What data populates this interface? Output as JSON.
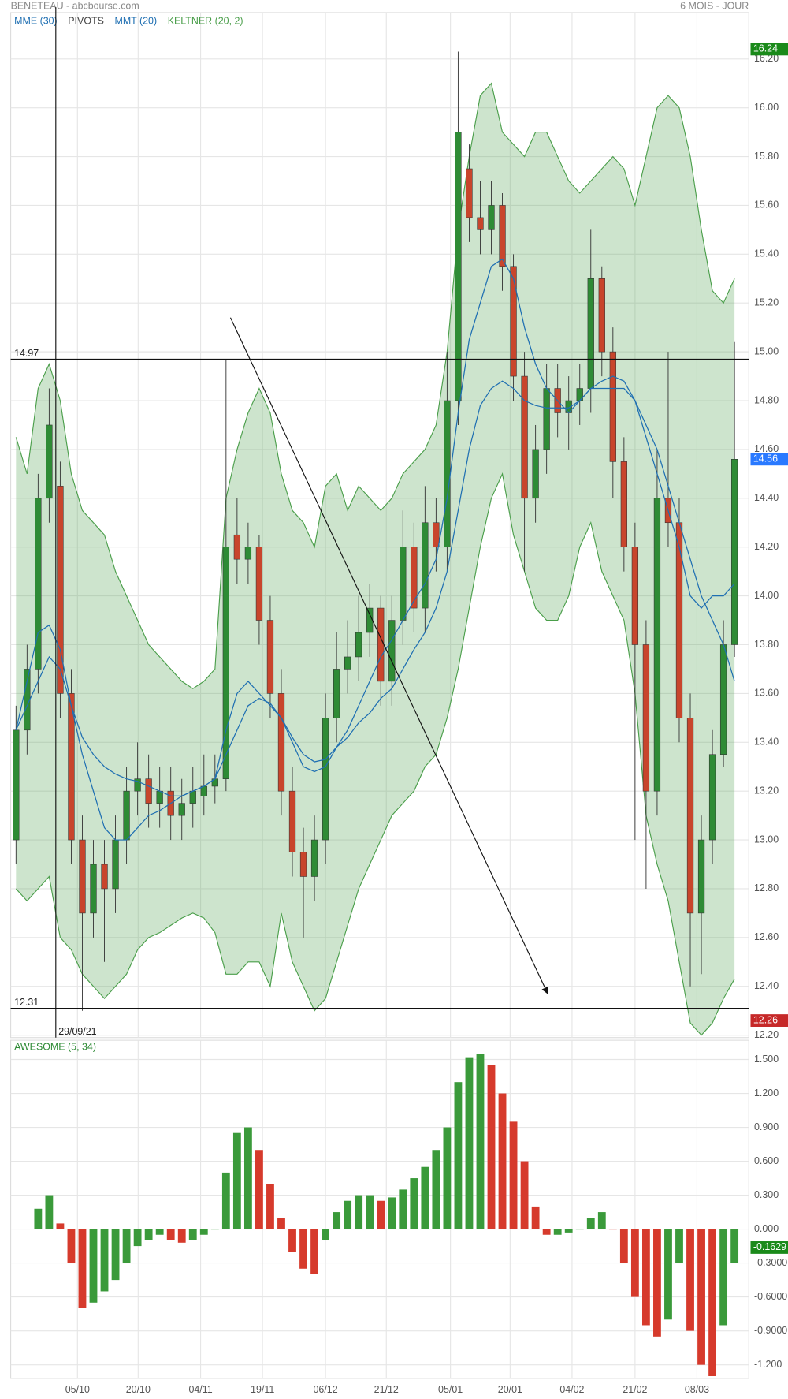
{
  "header": {
    "title": "BENETEAU - abcbourse.com",
    "period": "6 MOIS - JOUR"
  },
  "chart_data": [
    {
      "type": "candlestick",
      "up_color": "#2e8b35",
      "down_color": "#c8452c",
      "grid": true,
      "xlim": [
        -0.48,
        66.29
      ],
      "xticks": [
        {
          "value": 5.56,
          "label": "05/10"
        },
        {
          "value": 11.05,
          "label": "20/10"
        },
        {
          "value": 16.7,
          "label": "04/11"
        },
        {
          "value": 22.3,
          "label": "19/11"
        },
        {
          "value": 28.0,
          "label": "06/12"
        },
        {
          "value": 33.5,
          "label": "21/12"
        },
        {
          "value": 39.3,
          "label": "05/01"
        },
        {
          "value": 44.7,
          "label": "20/01"
        },
        {
          "value": 50.3,
          "label": "04/02"
        },
        {
          "value": 56.0,
          "label": "21/02"
        },
        {
          "value": 61.6,
          "label": "08/03"
        }
      ],
      "ylim": [
        12.19,
        16.39
      ],
      "yticks": [
        {
          "value": 12.2,
          "label": "12.20"
        },
        {
          "value": 12.4,
          "label": "12.40"
        },
        {
          "value": 12.6,
          "label": "12.60"
        },
        {
          "value": 12.8,
          "label": "12.80"
        },
        {
          "value": 13.0,
          "label": "13.00"
        },
        {
          "value": 13.2,
          "label": "13.20"
        },
        {
          "value": 13.4,
          "label": "13.40"
        },
        {
          "value": 13.6,
          "label": "13.60"
        },
        {
          "value": 13.8,
          "label": "13.80"
        },
        {
          "value": 14.0,
          "label": "14.00"
        },
        {
          "value": 14.2,
          "label": "14.20"
        },
        {
          "value": 14.4,
          "label": "14.40"
        },
        {
          "value": 14.6,
          "label": "14.60"
        },
        {
          "value": 14.8,
          "label": "14.80"
        },
        {
          "value": 15.0,
          "label": "15.00"
        },
        {
          "value": 15.2,
          "label": "15.20"
        },
        {
          "value": 15.4,
          "label": "15.40"
        },
        {
          "value": 15.6,
          "label": "15.60"
        },
        {
          "value": 15.8,
          "label": "15.80"
        },
        {
          "value": 16.0,
          "label": "16.00"
        },
        {
          "value": 16.2,
          "label": "16.20"
        }
      ],
      "open": [
        13.0,
        13.45,
        13.7,
        14.4,
        14.45,
        13.6,
        13.0,
        12.7,
        12.9,
        12.8,
        13.0,
        13.2,
        13.25,
        13.15,
        13.2,
        13.1,
        13.15,
        13.18,
        13.22,
        13.25,
        14.25,
        14.15,
        14.2,
        13.9,
        13.6,
        13.2,
        12.95,
        12.85,
        13.0,
        13.5,
        13.7,
        13.75,
        13.85,
        13.95,
        13.65,
        13.9,
        14.2,
        13.95,
        14.3,
        14.2,
        14.8,
        15.75,
        15.55,
        15.5,
        15.6,
        15.35,
        14.9,
        14.4,
        14.6,
        14.85,
        14.75,
        14.8,
        14.85,
        15.3,
        15.0,
        14.55,
        14.2,
        13.8,
        13.2,
        14.4,
        14.3,
        13.5,
        12.7,
        13.0,
        13.35,
        13.8
      ],
      "high": [
        13.55,
        13.8,
        14.5,
        14.85,
        14.55,
        13.7,
        13.1,
        13.0,
        13.0,
        13.1,
        13.3,
        13.4,
        13.35,
        13.3,
        13.3,
        13.25,
        13.3,
        13.35,
        13.35,
        14.97,
        14.4,
        14.3,
        14.25,
        14.0,
        13.7,
        13.3,
        13.05,
        13.1,
        13.6,
        13.85,
        13.9,
        14.0,
        14.05,
        14.0,
        14.0,
        14.35,
        14.3,
        14.45,
        14.4,
        15.0,
        16.23,
        15.85,
        15.7,
        15.7,
        15.65,
        15.4,
        15.0,
        14.7,
        14.95,
        14.95,
        14.9,
        14.95,
        15.5,
        15.35,
        15.1,
        14.65,
        14.3,
        13.9,
        14.6,
        15.0,
        14.4,
        13.6,
        13.1,
        13.45,
        13.9,
        15.04
      ],
      "low": [
        12.9,
        13.35,
        13.6,
        14.3,
        13.5,
        12.9,
        12.3,
        12.6,
        12.5,
        12.7,
        12.9,
        13.1,
        13.05,
        13.05,
        13.0,
        13.0,
        13.05,
        13.1,
        13.15,
        13.2,
        14.05,
        14.05,
        13.8,
        13.5,
        13.1,
        12.85,
        12.6,
        12.75,
        12.9,
        13.4,
        13.6,
        13.65,
        13.75,
        13.55,
        13.55,
        13.8,
        13.85,
        13.85,
        14.1,
        14.1,
        14.7,
        15.45,
        15.4,
        15.4,
        15.25,
        14.8,
        14.1,
        14.3,
        14.5,
        14.65,
        14.6,
        14.7,
        14.75,
        14.9,
        14.4,
        14.1,
        13.0,
        12.8,
        13.1,
        14.2,
        13.4,
        12.4,
        12.45,
        12.9,
        13.3,
        13.75
      ],
      "close": [
        13.45,
        13.7,
        14.4,
        14.7,
        13.6,
        13.0,
        12.7,
        12.9,
        12.8,
        13.0,
        13.2,
        13.25,
        13.15,
        13.2,
        13.1,
        13.15,
        13.2,
        13.22,
        13.25,
        14.2,
        14.15,
        14.2,
        13.9,
        13.6,
        13.2,
        12.95,
        12.85,
        13.0,
        13.5,
        13.7,
        13.75,
        13.85,
        13.95,
        13.65,
        13.9,
        14.2,
        13.95,
        14.3,
        14.2,
        14.8,
        15.9,
        15.55,
        15.5,
        15.6,
        15.35,
        14.9,
        14.4,
        14.6,
        14.85,
        14.75,
        14.8,
        14.85,
        15.3,
        15.0,
        14.55,
        14.2,
        13.8,
        13.2,
        14.4,
        14.3,
        13.5,
        12.7,
        13.0,
        13.35,
        13.8,
        14.56
      ],
      "indicators": [
        {
          "name": "MME (30)",
          "color": "#1f6fb2",
          "values": [
            13.45,
            13.55,
            13.65,
            13.75,
            13.7,
            13.55,
            13.42,
            13.35,
            13.3,
            13.27,
            13.25,
            13.24,
            13.22,
            13.2,
            13.18,
            13.18,
            13.2,
            13.22,
            13.25,
            13.35,
            13.45,
            13.55,
            13.58,
            13.56,
            13.5,
            13.42,
            13.35,
            13.32,
            13.33,
            13.38,
            13.42,
            13.48,
            13.52,
            13.58,
            13.62,
            13.7,
            13.78,
            13.85,
            13.95,
            14.1,
            14.35,
            14.6,
            14.78,
            14.85,
            14.88,
            14.85,
            14.8,
            14.78,
            14.77,
            14.77,
            14.77,
            14.8,
            14.85,
            14.85,
            14.85,
            14.85,
            14.8,
            14.7,
            14.6,
            14.45,
            14.3,
            14.15,
            14.0,
            13.9,
            13.8,
            13.65
          ]
        },
        {
          "name": "PIVOTS",
          "color": "#444444"
        },
        {
          "name": "MMT (20)",
          "color": "#1f6fb2",
          "values": [
            13.45,
            13.65,
            13.85,
            13.88,
            13.78,
            13.55,
            13.35,
            13.2,
            13.05,
            13.0,
            13.0,
            13.05,
            13.1,
            13.12,
            13.15,
            13.18,
            13.2,
            13.22,
            13.25,
            13.45,
            13.6,
            13.65,
            13.6,
            13.55,
            13.5,
            13.4,
            13.3,
            13.28,
            13.3,
            13.38,
            13.45,
            13.55,
            13.65,
            13.75,
            13.82,
            13.9,
            13.98,
            14.05,
            14.15,
            14.4,
            14.75,
            15.05,
            15.2,
            15.35,
            15.38,
            15.3,
            15.1,
            14.95,
            14.85,
            14.8,
            14.75,
            14.8,
            14.85,
            14.88,
            14.9,
            14.88,
            14.8,
            14.65,
            14.5,
            14.35,
            14.2,
            14.0,
            13.95,
            14.0,
            14.0,
            14.05
          ]
        },
        {
          "name": "KELTNER (20, 2)",
          "color": "#4a9e4a",
          "upper": [
            14.65,
            14.5,
            14.85,
            14.95,
            14.8,
            14.5,
            14.35,
            14.3,
            14.25,
            14.1,
            14.0,
            13.9,
            13.8,
            13.75,
            13.7,
            13.65,
            13.62,
            13.65,
            13.7,
            14.4,
            14.6,
            14.75,
            14.85,
            14.75,
            14.5,
            14.35,
            14.3,
            14.2,
            14.45,
            14.5,
            14.35,
            14.45,
            14.4,
            14.35,
            14.4,
            14.5,
            14.55,
            14.6,
            14.7,
            15.0,
            15.5,
            15.8,
            16.05,
            16.1,
            15.9,
            15.85,
            15.8,
            15.9,
            15.9,
            15.8,
            15.7,
            15.65,
            15.7,
            15.75,
            15.8,
            15.75,
            15.6,
            15.8,
            16.0,
            16.05,
            16.0,
            15.8,
            15.5,
            15.25,
            15.2,
            15.3
          ],
          "lower": [
            12.8,
            12.75,
            12.8,
            12.85,
            12.6,
            12.55,
            12.45,
            12.4,
            12.35,
            12.4,
            12.45,
            12.55,
            12.6,
            12.62,
            12.65,
            12.68,
            12.7,
            12.68,
            12.62,
            12.45,
            12.45,
            12.5,
            12.5,
            12.4,
            12.7,
            12.5,
            12.4,
            12.3,
            12.35,
            12.5,
            12.65,
            12.8,
            12.9,
            13.0,
            13.1,
            13.15,
            13.2,
            13.3,
            13.35,
            13.5,
            13.7,
            13.95,
            14.2,
            14.4,
            14.5,
            14.25,
            14.1,
            13.95,
            13.9,
            13.9,
            14.0,
            14.2,
            14.3,
            14.1,
            14.0,
            13.9,
            13.6,
            13.1,
            12.9,
            12.75,
            12.5,
            12.25,
            12.2,
            12.25,
            12.35,
            12.43
          ]
        }
      ],
      "hlines": [
        14.97,
        12.31
      ],
      "vline": {
        "x": 3.6,
        "label": "29/09/21"
      },
      "trendline": {
        "from": [
          19.4,
          15.14
        ],
        "to": [
          48.1,
          12.37
        ]
      },
      "tags": [
        {
          "value": 16.24,
          "color": "#1a8a1a"
        },
        {
          "value": 14.56,
          "color": "#2979ff"
        },
        {
          "value": 12.26,
          "color": "#c62828"
        }
      ]
    },
    {
      "type": "bar",
      "title": "AWESOME (5, 34)",
      "title_color": "#2e8b35",
      "up_color": "#3a9a3a",
      "down_color": "#d63a2c",
      "grid": true,
      "xlim": [
        -0.48,
        66.29
      ],
      "ylim": [
        -1.32,
        1.67
      ],
      "yticks": [
        {
          "value": 1.5,
          "label": "1.500"
        },
        {
          "value": 1.2,
          "label": "1.200"
        },
        {
          "value": 0.9,
          "label": "0.900"
        },
        {
          "value": 0.6,
          "label": "0.600"
        },
        {
          "value": 0.3,
          "label": "0.300"
        },
        {
          "value": 0,
          "label": "0.000"
        },
        {
          "value": -0.3,
          "label": "-0.3000"
        },
        {
          "value": -0.6,
          "label": "-0.6000"
        },
        {
          "value": -0.9,
          "label": "-0.9000"
        },
        {
          "value": -1.2,
          "label": "-1.200"
        }
      ],
      "values": [
        null,
        null,
        0.18,
        0.3,
        0.05,
        -0.3,
        -0.7,
        -0.65,
        -0.55,
        -0.45,
        -0.3,
        -0.15,
        -0.1,
        -0.05,
        -0.1,
        -0.12,
        -0.1,
        -0.05,
        0.0,
        0.5,
        0.85,
        0.9,
        0.7,
        0.4,
        0.1,
        -0.2,
        -0.35,
        -0.4,
        -0.1,
        0.15,
        0.25,
        0.3,
        0.3,
        0.25,
        0.28,
        0.35,
        0.45,
        0.55,
        0.7,
        0.9,
        1.3,
        1.52,
        1.55,
        1.45,
        1.2,
        0.95,
        0.6,
        0.2,
        -0.05,
        -0.05,
        -0.03,
        0.0,
        0.1,
        0.15,
        0.0,
        -0.3,
        -0.6,
        -0.85,
        -0.95,
        -0.8,
        -0.3,
        -0.9,
        -1.2,
        -1.3,
        -0.85,
        -0.3
      ],
      "tags": [
        {
          "value": -0.1629,
          "color": "#1a8a1a"
        }
      ]
    }
  ]
}
